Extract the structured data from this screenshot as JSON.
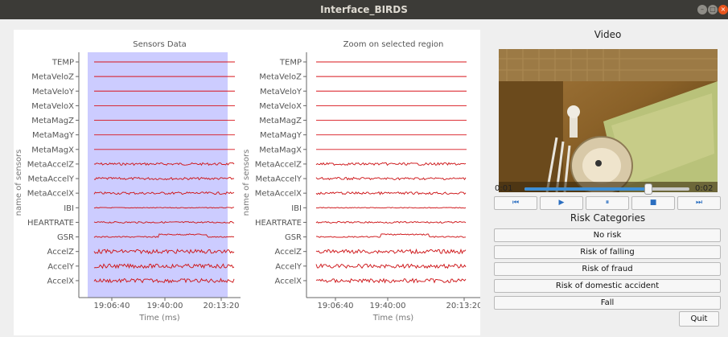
{
  "window": {
    "title": "Interface_BIRDS"
  },
  "colors": {
    "signal": "#d8141b",
    "noise": "#3a7d44",
    "selection": "#ccccff",
    "progress": "#3d8fd6"
  },
  "charts": [
    {
      "title": "Sensors Data",
      "xlabel": "Time (ms)",
      "ylabel": "name of sensors",
      "xticks": [
        "19:06:40",
        "19:40:00",
        "20:13:20"
      ]
    },
    {
      "title": "Zoom on selected region",
      "xlabel": "Time (ms)",
      "ylabel": "name of sensors",
      "xticks": [
        "19:06:40",
        "19:40:00",
        "20:13:20"
      ]
    }
  ],
  "chart_data": [
    {
      "type": "line",
      "title": "Sensors Data",
      "xlabel": "Time (ms)",
      "ylabel": "name of sensors",
      "categories": [
        "TEMP",
        "MetaVeloZ",
        "MetaVeloY",
        "MetaVeloX",
        "MetaMagZ",
        "MetaMagY",
        "MetaMagX",
        "MetaAccelZ",
        "MetaAccelY",
        "MetaAccelX",
        "IBI",
        "HEARTRATE",
        "GSR",
        "AccelZ",
        "AccelY",
        "AccelX"
      ],
      "x_ticks": [
        "19:06:40",
        "19:40:00",
        "20:13:20"
      ],
      "selected_region": true,
      "grid": false
    },
    {
      "type": "line",
      "title": "Zoom on selected region",
      "xlabel": "Time (ms)",
      "ylabel": "name of sensors",
      "categories": [
        "TEMP",
        "MetaVeloZ",
        "MetaVeloY",
        "MetaVeloX",
        "MetaMagZ",
        "MetaMagY",
        "MetaMagX",
        "MetaAccelZ",
        "MetaAccelY",
        "MetaAccelX",
        "IBI",
        "HEARTRATE",
        "GSR",
        "AccelZ",
        "AccelY",
        "AccelX"
      ],
      "x_ticks": [
        "19:06:40",
        "19:40:00",
        "20:13:20"
      ],
      "grid": false
    }
  ],
  "video": {
    "title": "Video",
    "current_time": "0:01",
    "total_time": "0:02",
    "progress": 0.75
  },
  "controls": [
    {
      "icon": "skip-back-icon",
      "glyph": "⏮"
    },
    {
      "icon": "play-icon",
      "glyph": "▶"
    },
    {
      "icon": "pause-icon",
      "glyph": "⏸"
    },
    {
      "icon": "stop-icon",
      "glyph": "■"
    },
    {
      "icon": "skip-forward-icon",
      "glyph": "⏭"
    }
  ],
  "risk": {
    "title": "Risk Categories",
    "buttons": [
      "No risk",
      "Risk of falling",
      "Risk of fraud",
      "Risk of domestic accident",
      "Fall"
    ]
  },
  "quit_label": "Quit"
}
